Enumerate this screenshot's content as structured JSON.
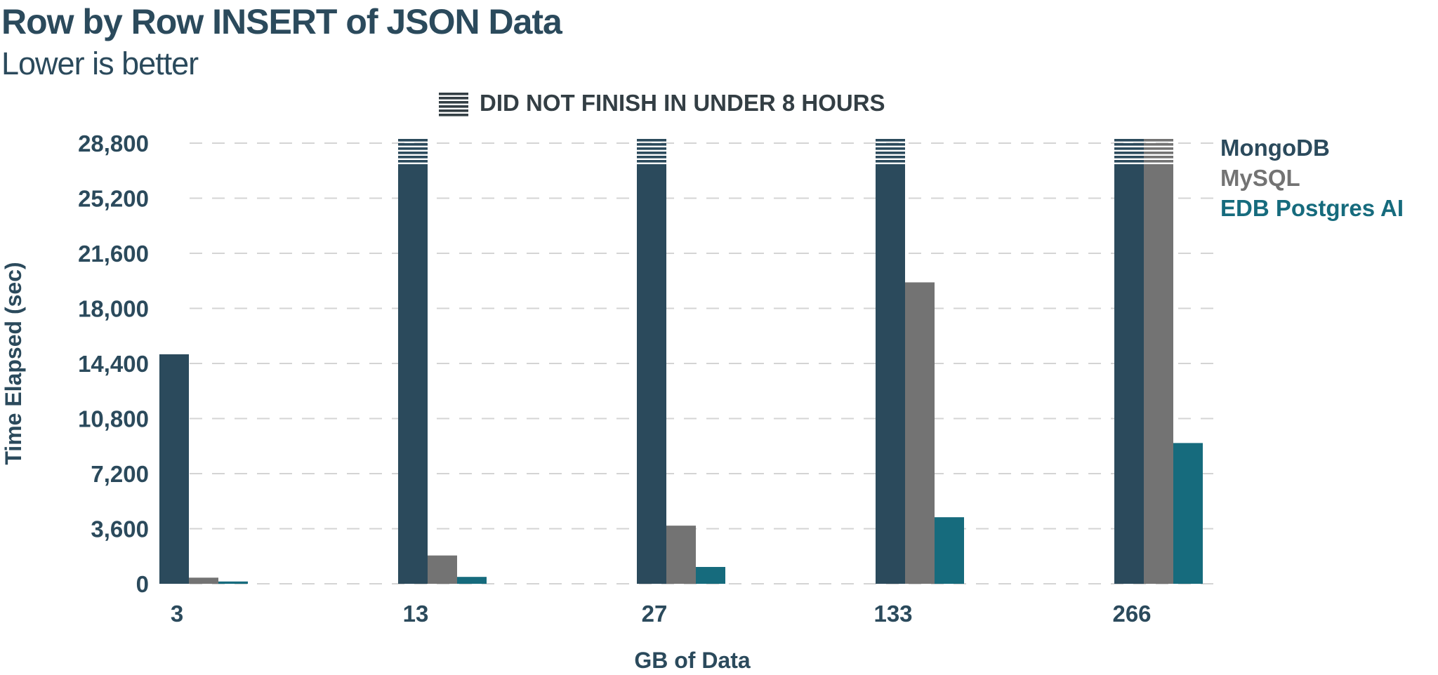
{
  "chart_data": {
    "type": "bar",
    "title": "Row by Row INSERT of JSON Data",
    "subtitle": "Lower is better",
    "annotation": "DID NOT FINISH IN UNDER 8 HOURS",
    "xlabel": "GB of Data",
    "ylabel": "Time Elapsed (sec)",
    "ylim": [
      0,
      28800
    ],
    "yticks": [
      0,
      3600,
      7200,
      10800,
      14400,
      18000,
      21600,
      25200,
      28800
    ],
    "ytick_labels": [
      "0",
      "3,600",
      "7,200",
      "10,800",
      "14,400",
      "18,000",
      "21,600",
      "25,200",
      "28,800"
    ],
    "categories": [
      "3",
      "13",
      "27",
      "133",
      "266"
    ],
    "dnf_value": 28800,
    "series": [
      {
        "name": "MongoDB",
        "color": "#2b4a5c",
        "values": [
          15000,
          28800,
          28800,
          28800,
          28800
        ],
        "dnf": [
          false,
          true,
          true,
          true,
          true
        ]
      },
      {
        "name": "MySQL",
        "color": "#737373",
        "values": [
          400,
          1850,
          3800,
          19700,
          28800
        ],
        "dnf": [
          false,
          false,
          false,
          false,
          true
        ]
      },
      {
        "name": "EDB Postgres AI",
        "color": "#166b7d",
        "values": [
          150,
          450,
          1100,
          4350,
          9200
        ],
        "dnf": [
          false,
          false,
          false,
          false,
          false
        ]
      }
    ],
    "legend_position": "right",
    "grid": true
  }
}
